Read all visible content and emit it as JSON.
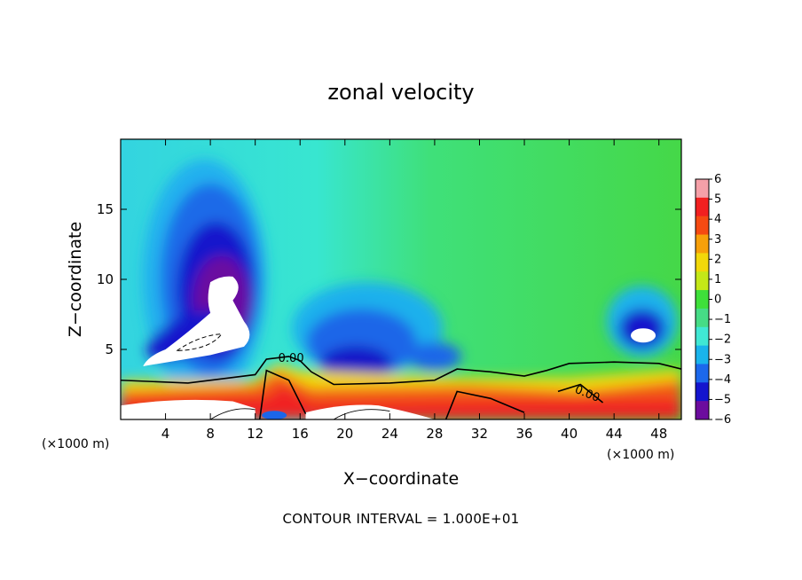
{
  "chart_data": {
    "type": "heatmap",
    "title": "zonal velocity",
    "xlabel": "X−coordinate",
    "ylabel": "Z−coordinate",
    "xlim": [
      0,
      50
    ],
    "ylim": [
      0,
      20
    ],
    "x_ticks": [
      4,
      8,
      12,
      16,
      20,
      24,
      28,
      32,
      36,
      40,
      44,
      48
    ],
    "y_ticks": [
      5,
      10,
      15
    ],
    "x_units": "(×1000 m)",
    "z_units": "(×1000 m)",
    "colorbar": {
      "ticks": [
        6,
        5,
        4,
        3,
        2,
        1,
        0,
        -1,
        -2,
        -3,
        -4,
        -5,
        -6
      ],
      "tick_labels": [
        "6",
        "5",
        "4",
        "3",
        "2",
        "1",
        "0",
        "−1",
        "−2",
        "−3",
        "−4",
        "−5",
        "−6"
      ],
      "colors": [
        "#f5a0a8",
        "#f22020",
        "#f54a12",
        "#f7a00a",
        "#f2d80a",
        "#c4e818",
        "#3ee03a",
        "#46dc86",
        "#40e8d4",
        "#1ab4ec",
        "#1c68ec",
        "#1414ce",
        "#6c0c9e"
      ]
    },
    "contour_labels": [
      "0.00",
      "0.00"
    ],
    "contour_interval": "CONTOUR INTERVAL = 1.000E+01"
  }
}
